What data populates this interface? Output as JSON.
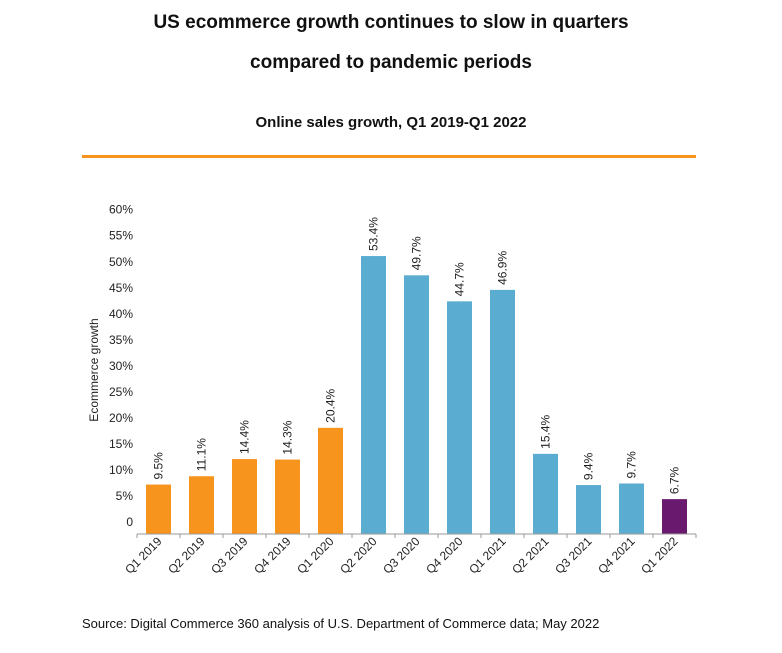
{
  "header": {
    "title_line1": "US ecommerce growth continues to slow in quarters",
    "title_line2": "compared to pandemic periods",
    "subtitle": "Online sales growth, Q1 2019-Q1 2022"
  },
  "footer": {
    "source": "Source: Digital Commerce 360 analysis of U.S. Department of Commerce data; May 2022"
  },
  "colors": {
    "accent_rule": "#f7941d",
    "pre_pandemic": "#f7941d",
    "pandemic": "#5aadd0",
    "latest": "#6a1a6e"
  },
  "chart_data": {
    "type": "bar",
    "title": "US ecommerce growth continues to slow in quarters compared to pandemic periods",
    "subtitle": "Online sales growth, Q1 2019-Q1 2022",
    "xlabel": "",
    "ylabel": "Ecommerce growth",
    "ylim": [
      0,
      60
    ],
    "yticks": [
      "0",
      "5%",
      "10%",
      "15%",
      "20%",
      "25%",
      "30%",
      "35%",
      "40%",
      "45%",
      "50%",
      "55%",
      "60%"
    ],
    "categories": [
      "Q1 2019",
      "Q2 2019",
      "Q3 2019",
      "Q4 2019",
      "Q1 2020",
      "Q2 2020",
      "Q3 2020",
      "Q4 2020",
      "Q1 2021",
      "Q2 2021",
      "Q3 2021",
      "Q4 2021",
      "Q1 2022"
    ],
    "values": [
      9.5,
      11.1,
      14.4,
      14.3,
      20.4,
      53.4,
      49.7,
      44.7,
      46.9,
      15.4,
      9.4,
      9.7,
      6.7
    ],
    "labels": [
      "9.5%",
      "11.1%",
      "14.4%",
      "14.3%",
      "20.4%",
      "53.4%",
      "49.7%",
      "44.7%",
      "46.9%",
      "15.4%",
      "9.4%",
      "9.7%",
      "6.7%"
    ],
    "bar_groups": [
      "pre_pandemic",
      "pre_pandemic",
      "pre_pandemic",
      "pre_pandemic",
      "pre_pandemic",
      "pandemic",
      "pandemic",
      "pandemic",
      "pandemic",
      "pandemic",
      "pandemic",
      "pandemic",
      "latest"
    ],
    "grid": false,
    "legend": "none"
  }
}
